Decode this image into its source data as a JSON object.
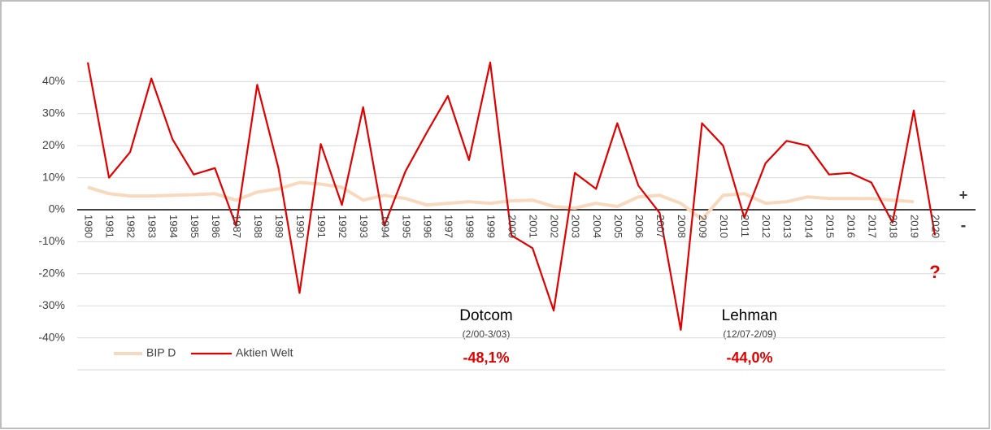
{
  "chart_data": {
    "type": "line",
    "categories": [
      "1980",
      "1981",
      "1982",
      "1983",
      "1984",
      "1985",
      "1986",
      "1987",
      "1988",
      "1989",
      "1990",
      "1991",
      "1992",
      "1993",
      "1994",
      "1995",
      "1996",
      "1997",
      "1998",
      "1999",
      "2000",
      "2001",
      "2002",
      "2003",
      "2004",
      "2005",
      "2006",
      "2007",
      "2008",
      "2009",
      "2010",
      "2011",
      "2012",
      "2013",
      "2014",
      "2015",
      "2016",
      "2017",
      "2018",
      "2019",
      "2020"
    ],
    "series": [
      {
        "name": "BIP D",
        "color": "#f8d9bd",
        "values": [
          7,
          5,
          4.3,
          4.3,
          4.5,
          4.7,
          5,
          3,
          5.5,
          6.5,
          8.5,
          8,
          7,
          3,
          4.5,
          3.5,
          1.5,
          2,
          2.5,
          2,
          2.8,
          3,
          1,
          0.5,
          2,
          1,
          4,
          4.5,
          2,
          -3,
          4.5,
          5,
          2,
          2.5,
          4,
          3.5,
          3.5,
          3.5,
          3,
          2.5,
          null
        ]
      },
      {
        "name": "Aktien Welt",
        "color": "#e00000",
        "values": [
          46,
          10,
          18,
          41,
          22,
          11,
          13,
          -5,
          39,
          13,
          -26,
          20.5,
          1.5,
          32,
          -5,
          12,
          24,
          35.5,
          15.5,
          46,
          -8,
          -12,
          -31.5,
          11.5,
          6.5,
          27,
          7.5,
          -1,
          -37.5,
          27,
          20,
          -2.5,
          14.5,
          21.5,
          20,
          11,
          11.5,
          8.5,
          -4,
          31,
          -8
        ]
      }
    ],
    "ylim": [
      -50,
      50
    ],
    "yticks": [
      {
        "value": -40,
        "label": "-40%"
      },
      {
        "value": -30,
        "label": "-30%"
      },
      {
        "value": -20,
        "label": "-20%"
      },
      {
        "value": -10,
        "label": "-10%"
      },
      {
        "value": 0,
        "label": "0%"
      },
      {
        "value": 10,
        "label": "10%"
      },
      {
        "value": 20,
        "label": "20%"
      },
      {
        "value": 30,
        "label": "30%"
      },
      {
        "value": 40,
        "label": "40%"
      }
    ],
    "grid": true,
    "legend": "bottom-left",
    "annotations": {
      "plus": "+",
      "minus": "-",
      "question": "?",
      "dotcom": {
        "title": "Dotcom",
        "period": "(2/00-3/03)",
        "loss": "-48,1%"
      },
      "lehman": {
        "title": "Lehman",
        "period": "(12/07-2/09)",
        "loss": "-44,0%"
      }
    }
  }
}
